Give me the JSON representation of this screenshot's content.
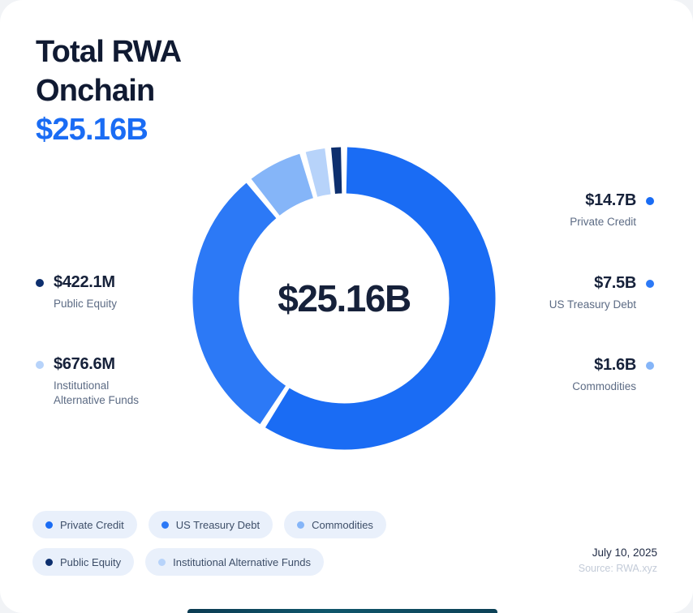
{
  "title": {
    "line1": "Total RWA",
    "line2": "Onchain",
    "amount": "$25.16B"
  },
  "chart_data": {
    "type": "donut",
    "title": "Total RWA Onchain",
    "center_label": "$25.16B",
    "total_display": "$25.16B",
    "units": "USD",
    "start_angle": "top",
    "direction": "clockwise",
    "gap_degrees": 2.4,
    "segments": [
      {
        "label": "Private Credit",
        "value_display": "$14.7B",
        "value_billions": 14.7,
        "color": "#1A6CF4"
      },
      {
        "label": "US Treasury Debt",
        "value_display": "$7.5B",
        "value_billions": 7.5,
        "color": "#2C79F6"
      },
      {
        "label": "Commodities",
        "value_display": "$1.6B",
        "value_billions": 1.6,
        "color": "#85B5F8"
      },
      {
        "label": "Institutional Alternative Funds",
        "value_display": "$676.6M",
        "value_billions": 0.6766,
        "color": "#B7D3FA"
      },
      {
        "label": "Public Equity",
        "value_display": "$422.1M",
        "value_billions": 0.4221,
        "color": "#0D2F6E"
      }
    ]
  },
  "callouts": {
    "left": [
      {
        "value": "$422.1M",
        "label": "Public Equity",
        "color": "#0D2F6E"
      },
      {
        "value": "$676.6M",
        "label": "Institutional Alternative Funds",
        "color": "#B7D3FA"
      }
    ],
    "right": [
      {
        "value": "$14.7B",
        "label": "Private Credit",
        "color": "#1A6CF4"
      },
      {
        "value": "$7.5B",
        "label": "US Treasury Debt",
        "color": "#2C79F6"
      },
      {
        "value": "$1.6B",
        "label": "Commodities",
        "color": "#85B5F8"
      }
    ]
  },
  "legend": {
    "rows": [
      [
        {
          "label": "Private Credit",
          "color": "#1A6CF4"
        },
        {
          "label": "US Treasury Debt",
          "color": "#2C79F6"
        },
        {
          "label": "Commodities",
          "color": "#85B5F8"
        }
      ],
      [
        {
          "label": "Public Equity",
          "color": "#0D2F6E"
        },
        {
          "label": "Institutional Alternative Funds",
          "color": "#B7D3FA"
        }
      ]
    ]
  },
  "footer": {
    "date": "July 10, 2025",
    "source": "Source: RWA.xyz"
  }
}
